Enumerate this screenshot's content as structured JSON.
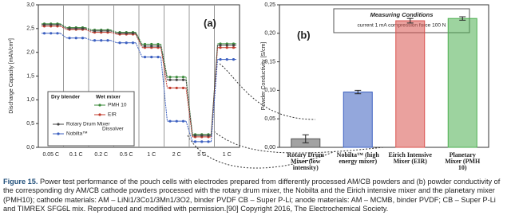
{
  "chart_data": [
    {
      "type": "line",
      "panel": "(a)",
      "y_label": "Discharge Capacity [mAh/cm²]",
      "categories": [
        "0.05 C",
        "0.1 C",
        "0.2 C",
        "0.5 C",
        "1 C",
        "2 C",
        "5 C",
        "1 C"
      ],
      "ylim": [
        0,
        3.0
      ],
      "yticks": [
        {
          "value": 0,
          "label": "0,0"
        },
        {
          "value": 0.5,
          "label": "0,5"
        },
        {
          "value": 1.0,
          "label": "1,0"
        },
        {
          "value": 1.5,
          "label": "1,5"
        },
        {
          "value": 2.0,
          "label": "2,0"
        },
        {
          "value": 2.5,
          "label": "2,5"
        },
        {
          "value": 3.0,
          "label": "3,0"
        }
      ],
      "legend_groups": [
        "Dry blender",
        "Wet mixer"
      ],
      "legend_note": "Dissolver",
      "series": [
        {
          "name": "PMH 10",
          "color": "#3a8a3a",
          "values": [
            2.6,
            2.52,
            2.47,
            2.42,
            2.17,
            1.48,
            0.27,
            2.18
          ]
        },
        {
          "name": "EIR",
          "color": "#c0392b",
          "values": [
            2.55,
            2.48,
            2.42,
            2.38,
            2.1,
            1.25,
            0.22,
            2.1
          ]
        },
        {
          "name": "Rotary Drum Mixer",
          "color": "#444444",
          "values": [
            2.58,
            2.5,
            2.45,
            2.4,
            2.13,
            1.42,
            0.25,
            2.15
          ]
        },
        {
          "name": "Nobilta™",
          "color": "#3b5fc0",
          "values": [
            2.4,
            2.3,
            2.25,
            2.2,
            1.9,
            0.55,
            0.12,
            1.85
          ]
        }
      ]
    },
    {
      "type": "bar",
      "panel": "(b)",
      "y_label": "Powder Conductivity [S/cm]",
      "box_title": "Measuring Conditions",
      "box_text": "current 1 mA  compression force 100 N",
      "categories": [
        "Rotary Drum Mixer (low intensity)",
        "Nobilta™ (high energy mixer)",
        "Eirich Intensive Mixer (EIR)",
        "Planetary Mixer (PMH 10)"
      ],
      "values": [
        0.015,
        0.097,
        0.222,
        0.226
      ],
      "errors": [
        0.007,
        0.003,
        0.004,
        0.003
      ],
      "colors": [
        "#555555",
        "#3b5fc0",
        "#d9534f",
        "#4caf50"
      ],
      "ylim": [
        0,
        0.25
      ],
      "yticks": [
        {
          "value": 0,
          "label": "0,00"
        },
        {
          "value": 0.05,
          "label": "0,05"
        },
        {
          "value": 0.1,
          "label": "0,10"
        },
        {
          "value": 0.15,
          "label": "0,15"
        },
        {
          "value": 0.2,
          "label": "0,20"
        },
        {
          "value": 0.25,
          "label": "0,25"
        }
      ]
    }
  ],
  "caption": {
    "label": "Figure 15.",
    "text": "Power test performance of the pouch cells with electrodes prepared from differently processed AM/CB powders and (b) powder conductivity of the corresponding dry AM/CB cathode powders processed with the rotary drum mixer, the Nobilta and the Eirich intensive mixer and the planetary mixer (PMH10); cathode materials: AM – LiNi1/3Co1/3Mn1/3O2, binder PVDF CB – Super P-Li; anode materials: AM – MCMB, binder PVDF; CB – Super P-Li and TIMREX SFG6L mix. Reproduced and modified with permission.[90] Copyright 2016, The Electrochemical Society."
  }
}
